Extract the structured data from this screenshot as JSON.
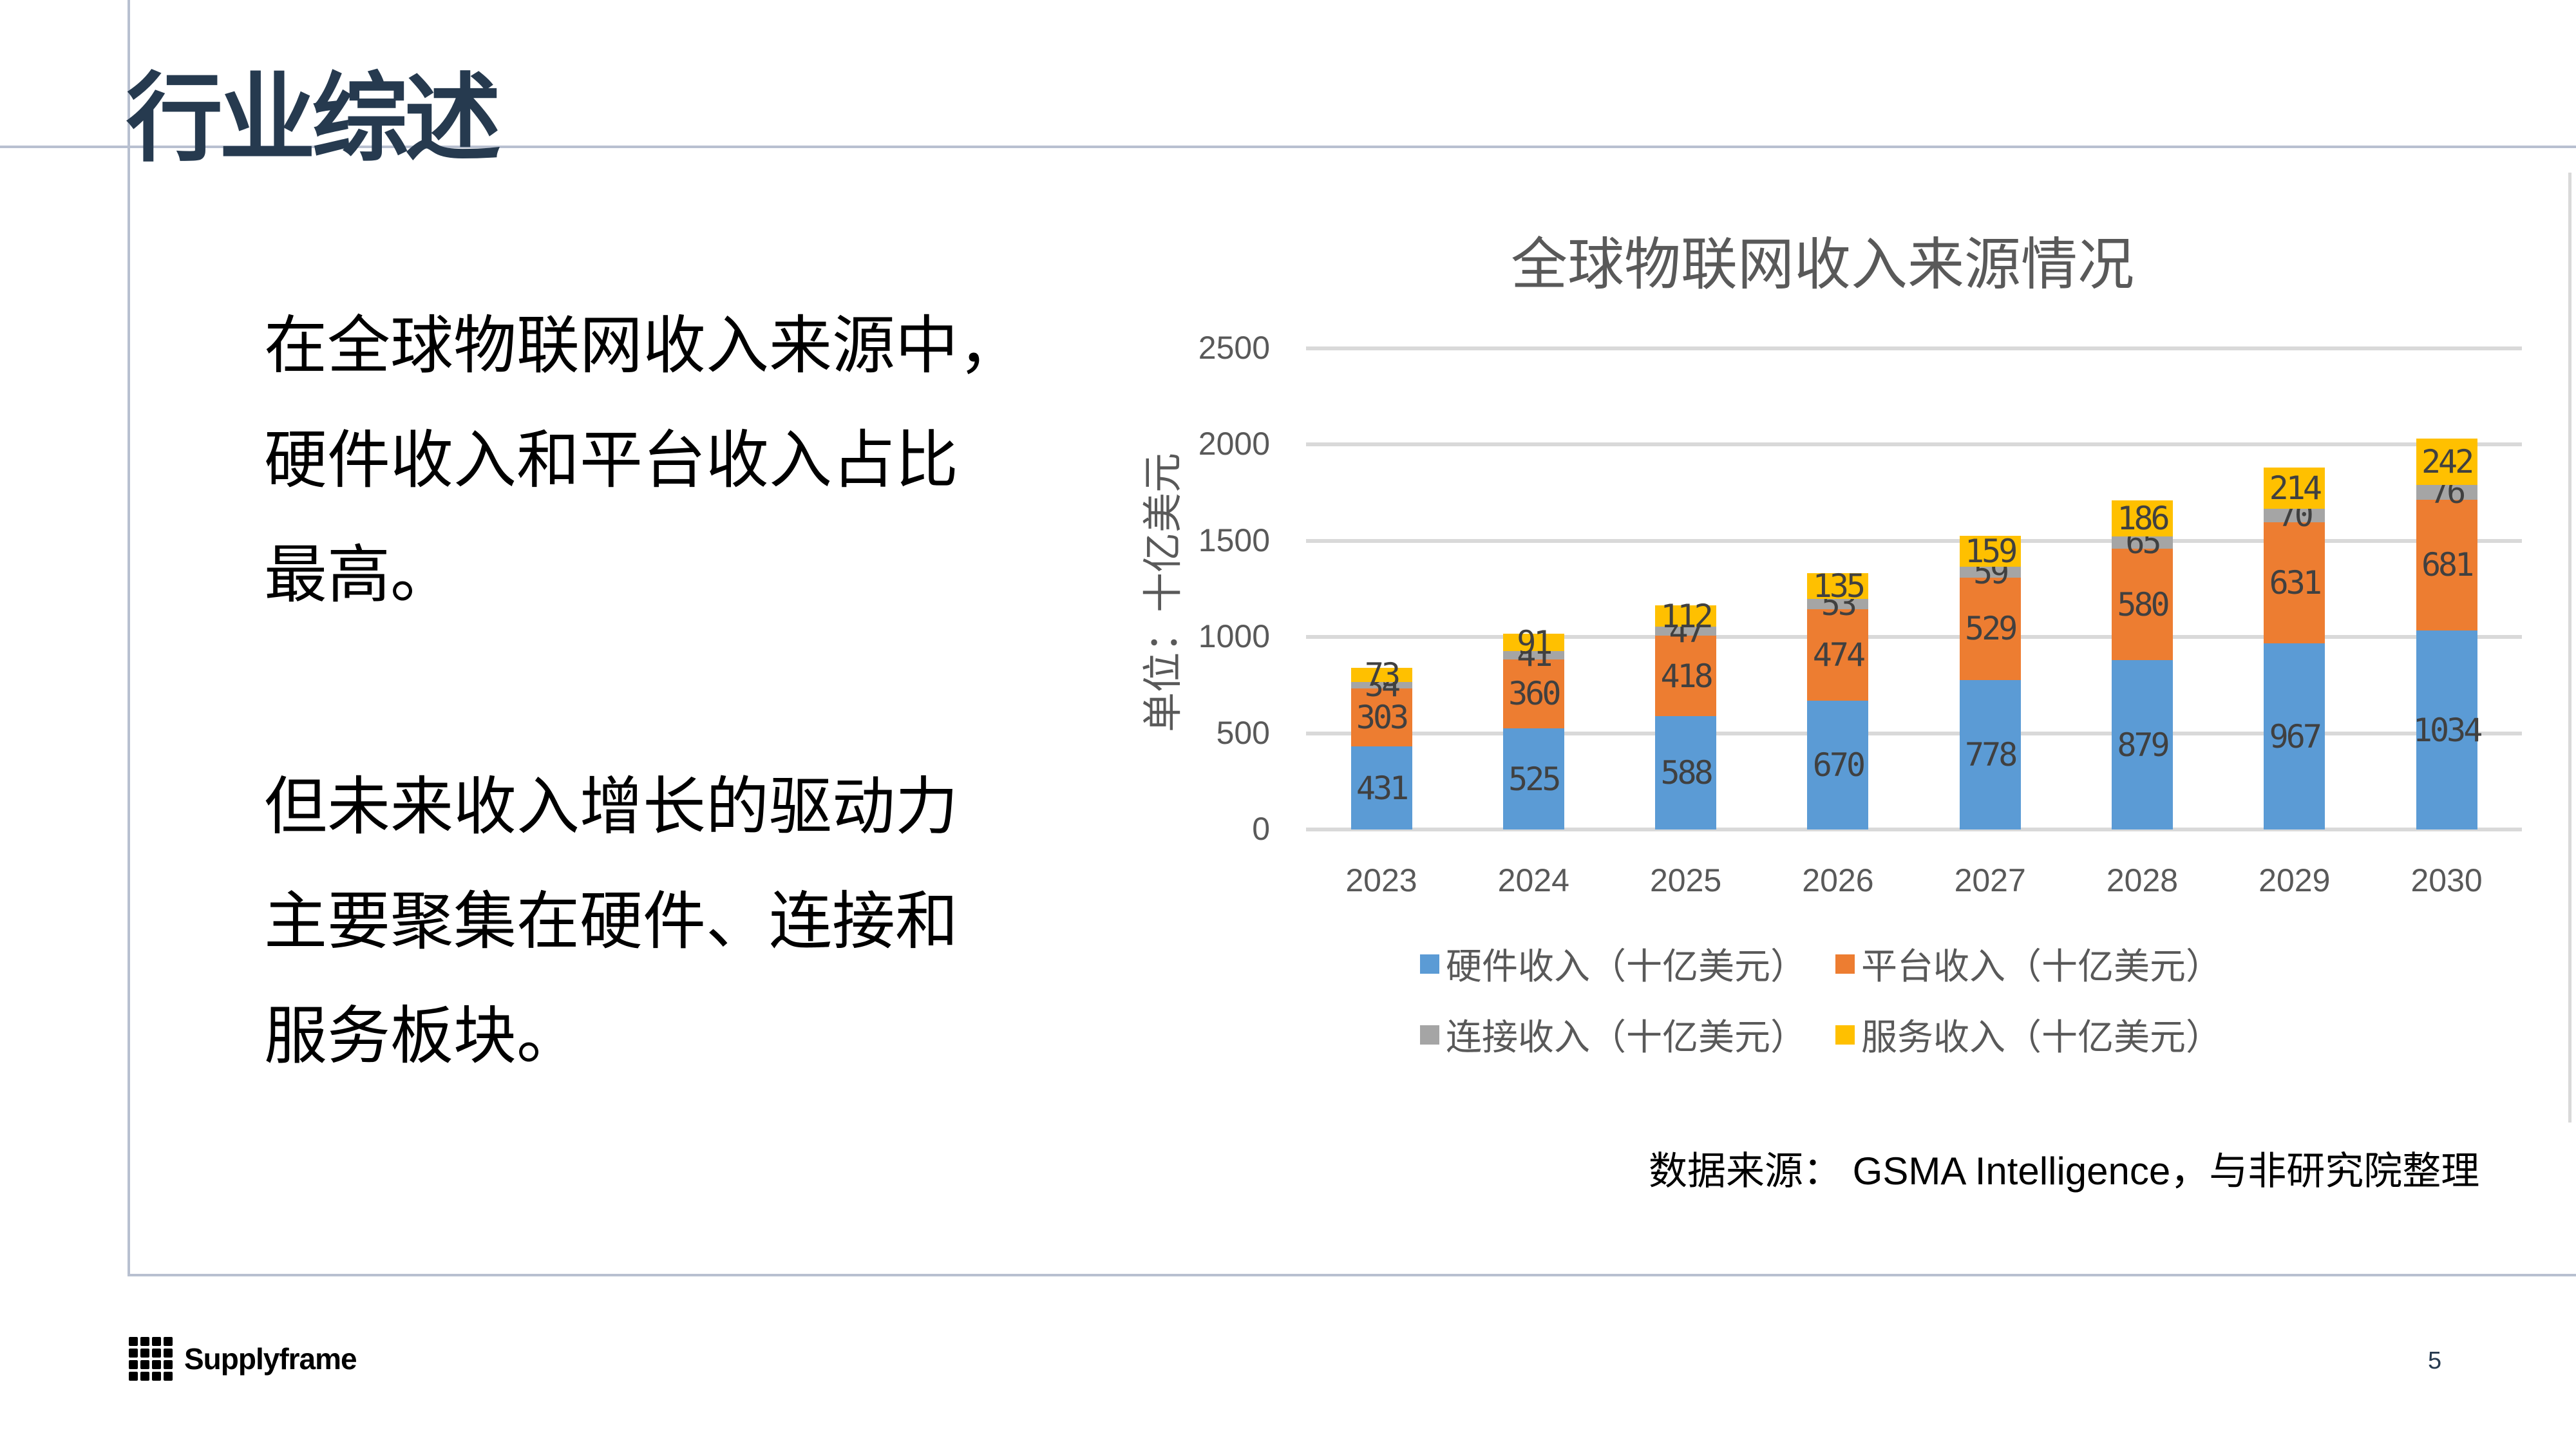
{
  "slide": {
    "title": "行业综述",
    "page_number": "5",
    "body_paragraphs": [
      [
        "在全球物联网收入来源中，",
        "硬件收入和平台收入占比",
        "最高。"
      ],
      [
        "但未来收入增长的驱动力",
        "主要聚集在硬件、连接和",
        "服务板块。"
      ]
    ],
    "source_note": "数据来源： GSMA Intelligence，与非研究院整理",
    "logo": {
      "icon": "supplyframe-grid-logo-icon",
      "text": "Supplyframe"
    },
    "colors": {
      "title": "#263a4f",
      "frame_line": "#b8c0d0"
    }
  },
  "chart_data": {
    "type": "bar",
    "stacked": true,
    "title": "全球物联网收入来源情况",
    "xlabel": "",
    "ylabel": "单位：十亿美元",
    "ylim": [
      0,
      2500
    ],
    "yticks": [
      "0",
      "500",
      "1000",
      "1500",
      "2000",
      "2500"
    ],
    "grid": true,
    "legend_position": "bottom",
    "categories": [
      "2023",
      "2024",
      "2025",
      "2026",
      "2027",
      "2028",
      "2029",
      "2030"
    ],
    "series": [
      {
        "name": "硬件收入（十亿美元）",
        "color": "#5B9BD5",
        "values": [
          431,
          525,
          588,
          670,
          778,
          879,
          967,
          1034
        ]
      },
      {
        "name": "平台收入（十亿美元）",
        "color": "#ED7D31",
        "values": [
          303,
          360,
          418,
          474,
          529,
          580,
          631,
          681
        ]
      },
      {
        "name": "连接收入（十亿美元）",
        "color": "#A5A5A5",
        "values": [
          34,
          41,
          47,
          53,
          59,
          65,
          70,
          76
        ]
      },
      {
        "name": "服务收入（十亿美元）",
        "color": "#FFC000",
        "values": [
          73,
          91,
          112,
          135,
          159,
          186,
          214,
          242
        ]
      }
    ]
  }
}
